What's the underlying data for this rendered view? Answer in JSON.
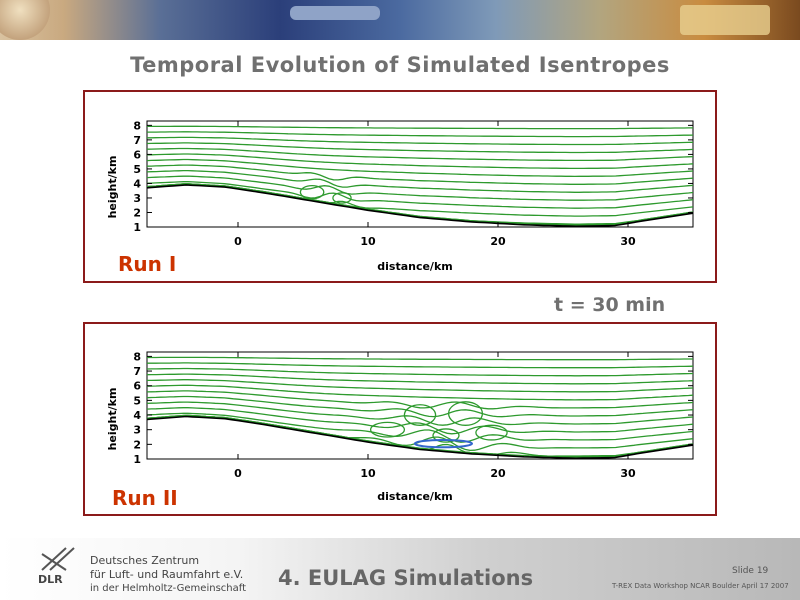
{
  "slide": {
    "title": "Temporal Evolution of Simulated Isentropes",
    "time_label": "t = 30 min",
    "section": "4. EULAG Simulations",
    "slide_number": "Slide 19",
    "conference": "T-REX Data Workshop NCAR Boulder April 17 2007"
  },
  "organization": {
    "name_line1": "Deutsches Zentrum",
    "name_line2": "für Luft- und Raumfahrt e.V.",
    "name_line3": "in der Helmholtz-Gemeinschaft",
    "logo_text": "DLR"
  },
  "panels": [
    {
      "run_label": "Run I",
      "xlabel": "distance/km",
      "ylabel": "height/km",
      "x_ticks": [
        "0",
        "10",
        "20",
        "30"
      ],
      "y_ticks": [
        "1",
        "2",
        "3",
        "4",
        "5",
        "6",
        "7",
        "8"
      ],
      "xlim": [
        -7,
        35
      ],
      "ylim": [
        1,
        8.3
      ]
    },
    {
      "run_label": "Run II",
      "xlabel": "distance/km",
      "ylabel": "height/km",
      "x_ticks": [
        "0",
        "10",
        "20",
        "30"
      ],
      "y_ticks": [
        "1",
        "2",
        "3",
        "4",
        "5",
        "6",
        "7",
        "8"
      ],
      "xlim": [
        -7,
        35
      ],
      "ylim": [
        1,
        8.3
      ]
    }
  ],
  "colors": {
    "isentrope": "#2e9a2e",
    "terrain": "#000000",
    "panel_border": "#8b1a1a",
    "run_label": "#cc3300",
    "rotor": "#3366cc"
  }
}
